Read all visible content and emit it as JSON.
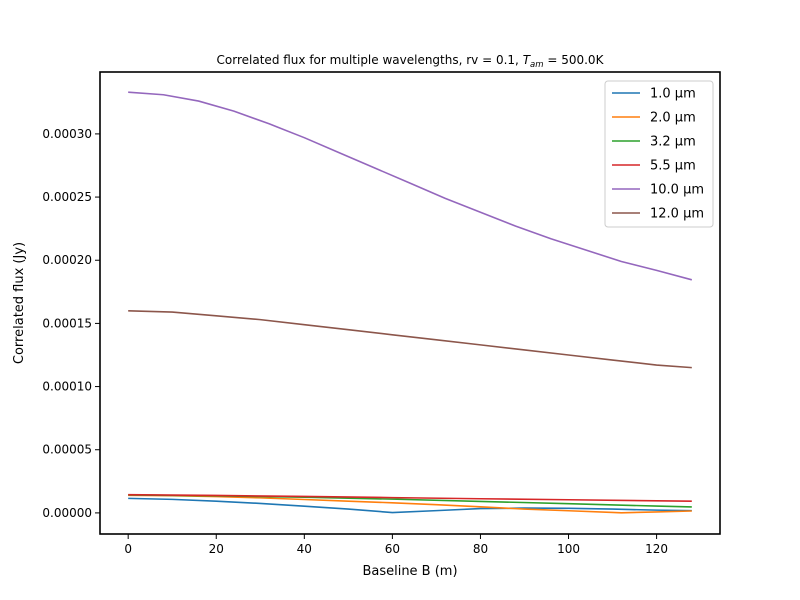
{
  "chart_data": {
    "type": "line",
    "title_parts": {
      "main": "Correlated flux for multiple wavelengths, rv = 0.1, ",
      "sym": "T",
      "sub": "am",
      "tail": " = 500.0K"
    },
    "xlabel": "Baseline B (m)",
    "ylabel": "Correlated flux (Jy)",
    "xlim": [
      -6.4,
      134.4
    ],
    "ylim": [
      -1.67e-05,
      0.000349
    ],
    "x_ticks": [
      0,
      20,
      40,
      60,
      80,
      100,
      120
    ],
    "x_tick_labels": [
      "0",
      "20",
      "40",
      "60",
      "80",
      "100",
      "120"
    ],
    "y_ticks": [
      0,
      5e-05,
      0.0001,
      0.00015,
      0.0002,
      0.00025,
      0.0003
    ],
    "y_tick_labels": [
      "0.00000",
      "0.00005",
      "0.00010",
      "0.00015",
      "0.00020",
      "0.00025",
      "0.00030"
    ],
    "legend_position": "top-right",
    "series": [
      {
        "name": "1.0 μm",
        "color": "#1f77b4",
        "x": [
          0,
          10,
          20,
          30,
          40,
          50,
          60,
          70,
          80,
          90,
          100,
          110,
          120,
          128
        ],
        "values": [
          1.15e-05,
          1.07e-05,
          9.3e-06,
          7.5e-06,
          5.3e-06,
          3e-06,
          3e-07,
          1.8e-06,
          3.4e-06,
          3.8e-06,
          3.6e-06,
          3e-06,
          2.2e-06,
          1.8e-06
        ]
      },
      {
        "name": "2.0 μm",
        "color": "#ff7f0e",
        "x": [
          0,
          10,
          20,
          30,
          40,
          50,
          60,
          70,
          80,
          90,
          100,
          110,
          112,
          120,
          128
        ],
        "values": [
          1.39e-05,
          1.36e-05,
          1.29e-05,
          1.19e-05,
          1.06e-05,
          9.3e-06,
          8e-06,
          6.5e-06,
          4.8e-06,
          3e-06,
          1.7e-06,
          4e-07,
          1e-07,
          8e-07,
          1.5e-06
        ]
      },
      {
        "name": "3.2 μm",
        "color": "#2ca02c",
        "x": [
          0,
          20,
          40,
          60,
          80,
          100,
          120,
          128
        ],
        "values": [
          1.42e-05,
          1.35e-05,
          1.24e-05,
          1.09e-05,
          9.1e-06,
          7.3e-06,
          5.4e-06,
          4.7e-06
        ]
      },
      {
        "name": "5.5 μm",
        "color": "#d62728",
        "x": [
          0,
          20,
          40,
          60,
          80,
          100,
          120,
          128
        ],
        "values": [
          1.44e-05,
          1.38e-05,
          1.3e-05,
          1.21e-05,
          1.12e-05,
          1.04e-05,
          9.6e-06,
          9.3e-06
        ]
      },
      {
        "name": "10.0 μm",
        "color": "#9467bd",
        "x": [
          0,
          8,
          16,
          24,
          32,
          40,
          48,
          56,
          64,
          72,
          80,
          88,
          96,
          104,
          112,
          120,
          128
        ],
        "values": [
          0.000333,
          0.000331,
          0.000326,
          0.000318,
          0.000308,
          0.000297,
          0.000285,
          0.000273,
          0.000261,
          0.000249,
          0.000238,
          0.000227,
          0.000217,
          0.000208,
          0.000199,
          0.000192,
          0.0001845
        ]
      },
      {
        "name": "12.0 μm",
        "color": "#8c564b",
        "x": [
          0,
          10,
          20,
          30,
          40,
          50,
          60,
          70,
          80,
          90,
          100,
          110,
          120,
          128
        ],
        "values": [
          0.00016,
          0.000159,
          0.000156,
          0.000153,
          0.000149,
          0.000145,
          0.000141,
          0.000137,
          0.000133,
          0.000129,
          0.000125,
          0.000121,
          0.000117,
          0.000115
        ]
      }
    ]
  }
}
